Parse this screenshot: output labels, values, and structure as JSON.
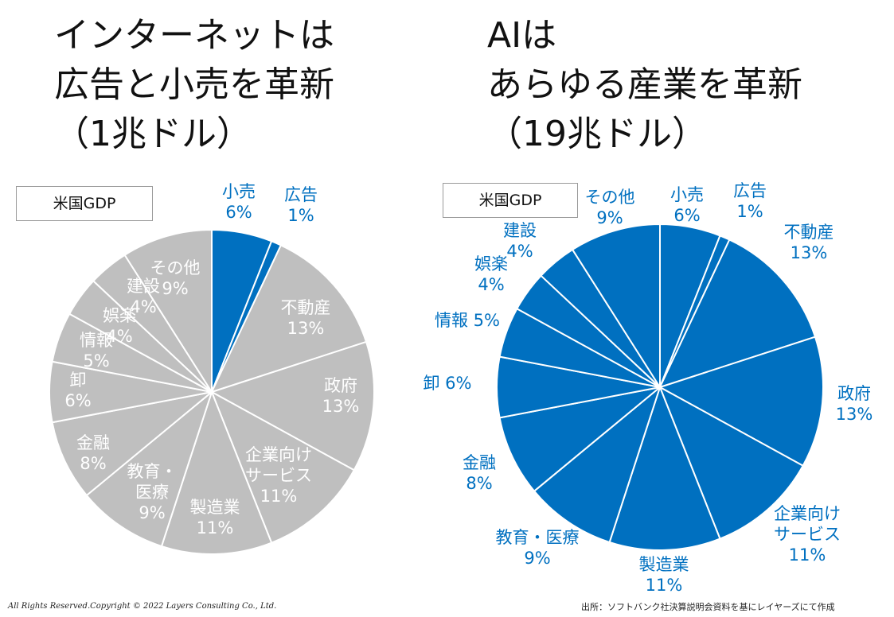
{
  "left": {
    "title_lines": [
      "インターネットは",
      "広告と小売を革新",
      "（1兆ドル）"
    ],
    "gdp_label": "米国GDP"
  },
  "right": {
    "title_lines": [
      "AIは",
      "あらゆる産業を革新",
      "（19兆ドル）"
    ],
    "gdp_label": "米国GDP"
  },
  "footer": {
    "copyright": "All Rights Reserved.Copyright © 2022 Layers Consulting Co., Ltd.",
    "source": "出所：ソフトバンク社決算説明会資料を基にレイヤーズにて作成"
  },
  "colors": {
    "blue": "#0070C0",
    "gray": "#BFBFBF",
    "white": "#FFFFFF"
  },
  "chart_data": [
    {
      "type": "pie",
      "title": "",
      "categories": [
        "小売",
        "広告",
        "不動産",
        "政府",
        "企業向けサービス",
        "製造業",
        "教育・医療",
        "金融",
        "卸",
        "情報",
        "娯楽",
        "建設",
        "その他"
      ],
      "values": [
        6,
        1,
        13,
        13,
        11,
        11,
        9,
        8,
        6,
        5,
        4,
        4,
        9
      ],
      "value_labels": [
        "6%",
        "1%",
        "13%",
        "13%",
        "11%",
        "11%",
        "9%",
        "8%",
        "6%",
        "5%",
        "4%",
        "4%",
        "9%"
      ],
      "highlighted": [
        "小売",
        "広告"
      ],
      "label_lines": [
        [
          "小売",
          "6%"
        ],
        [
          "広告",
          "1%"
        ],
        [
          "不動産",
          "13%"
        ],
        [
          "政府",
          "13%"
        ],
        [
          "企業向け",
          "サービス",
          "11%"
        ],
        [
          "製造業",
          "11%"
        ],
        [
          "教育・",
          "医療",
          "9%"
        ],
        [
          "金融",
          "8%"
        ],
        [
          "卸",
          "6%"
        ],
        [
          "情報",
          "5%"
        ],
        [
          "娯楽",
          "4%"
        ],
        [
          "建設",
          "4%"
        ],
        [
          "その他",
          "9%"
        ]
      ]
    },
    {
      "type": "pie",
      "title": "",
      "categories": [
        "小売",
        "広告",
        "不動産",
        "政府",
        "企業向けサービス",
        "製造業",
        "教育・医療",
        "金融",
        "卸",
        "情報",
        "娯楽",
        "建設",
        "その他"
      ],
      "values": [
        6,
        1,
        13,
        13,
        11,
        11,
        9,
        8,
        6,
        5,
        4,
        4,
        9
      ],
      "value_labels": [
        "6%",
        "1%",
        "13%",
        "13%",
        "11%",
        "11%",
        "9%",
        "8%",
        "6%",
        "5%",
        "4%",
        "4%",
        "9%"
      ],
      "highlighted": "all",
      "label_lines": [
        [
          "小売",
          "6%"
        ],
        [
          "広告",
          "1%"
        ],
        [
          "不動産",
          "13%"
        ],
        [
          "政府",
          "13%"
        ],
        [
          "企業向け",
          "サービス",
          "11%"
        ],
        [
          "製造業",
          "11%"
        ],
        [
          "教育・医療",
          "9%"
        ],
        [
          "金融",
          "8%"
        ],
        [
          "卸 6%"
        ],
        [
          "情報 5%"
        ],
        [
          "娯楽",
          "4%"
        ],
        [
          "建設",
          "4%"
        ],
        [
          "その他",
          "9%"
        ]
      ]
    }
  ]
}
